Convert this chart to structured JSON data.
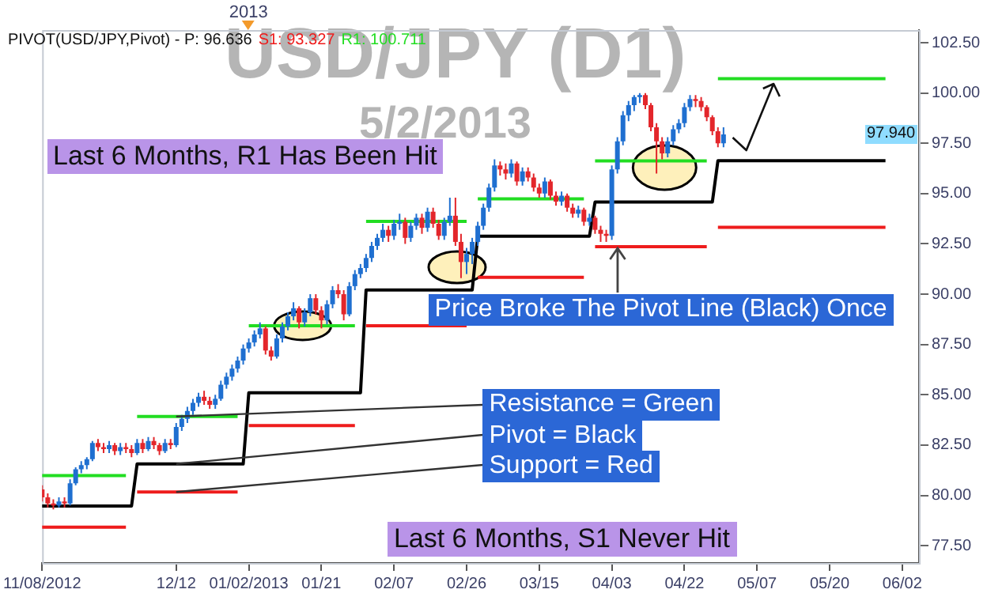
{
  "chart_data": {
    "type": "candlestick",
    "title": "USD/JPY (D1)",
    "subtitle": "5/2/2013",
    "categories": [
      "11/08/2012",
      null,
      null,
      null,
      null,
      null,
      null,
      null,
      null,
      null,
      null,
      null,
      null,
      null,
      null,
      null,
      null,
      null,
      null,
      null,
      null,
      null,
      null,
      null,
      "12/12",
      null,
      null,
      null,
      null,
      null,
      null,
      null,
      null,
      null,
      null,
      null,
      null,
      "01/02/2013",
      null,
      null,
      null,
      null,
      null,
      null,
      null,
      null,
      null,
      null,
      null,
      null,
      "01/21",
      null,
      null,
      null,
      null,
      null,
      null,
      null,
      null,
      null,
      null,
      null,
      null,
      "02/07",
      null,
      null,
      null,
      null,
      null,
      null,
      null,
      null,
      null,
      null,
      null,
      null,
      "02/26",
      null,
      null,
      null,
      null,
      null,
      null,
      null,
      null,
      null,
      null,
      null,
      null,
      "03/15",
      null,
      null,
      null,
      null,
      null,
      null,
      null,
      null,
      null,
      null,
      null,
      null,
      "04/03",
      null,
      null,
      null,
      null,
      null,
      null,
      null,
      null,
      null,
      null,
      null,
      null,
      "04/22",
      null,
      null,
      null,
      null,
      null,
      null,
      null,
      null,
      null,
      null,
      null,
      null,
      "05/07",
      null,
      null,
      null,
      null,
      null,
      null,
      null,
      null,
      null,
      null,
      null,
      null,
      "05/20",
      null,
      null,
      null,
      null,
      null,
      null,
      null,
      null,
      null,
      null,
      null,
      null,
      "06/02",
      null,
      null,
      null
    ],
    "ohlc": [
      [
        80.3,
        80.5,
        79.7,
        79.9
      ],
      [
        79.9,
        80.1,
        79.4,
        79.6
      ],
      [
        79.6,
        79.8,
        79.3,
        79.5
      ],
      [
        79.5,
        79.9,
        79.4,
        79.7
      ],
      [
        79.7,
        79.9,
        79.4,
        79.6
      ],
      [
        79.6,
        80.8,
        79.5,
        80.6
      ],
      [
        80.6,
        81.4,
        80.5,
        81.3
      ],
      [
        81.3,
        81.7,
        81.1,
        81.5
      ],
      [
        81.5,
        81.9,
        81.3,
        81.8
      ],
      [
        81.8,
        82.7,
        81.7,
        82.6
      ],
      [
        82.6,
        82.8,
        82.2,
        82.4
      ],
      [
        82.4,
        82.6,
        82.1,
        82.3
      ],
      [
        82.3,
        82.7,
        82.1,
        82.5
      ],
      [
        82.5,
        82.6,
        82.0,
        82.2
      ],
      [
        82.2,
        82.6,
        82.0,
        82.4
      ],
      [
        82.4,
        82.6,
        82.1,
        82.3
      ],
      [
        82.3,
        82.5,
        81.9,
        82.1
      ],
      [
        82.1,
        82.8,
        82.0,
        82.6
      ],
      [
        82.6,
        82.8,
        82.1,
        82.3
      ],
      [
        82.3,
        82.9,
        82.2,
        82.7
      ],
      [
        82.7,
        82.9,
        82.3,
        82.5
      ],
      [
        82.5,
        82.6,
        82.0,
        82.2
      ],
      [
        82.2,
        82.8,
        82.1,
        82.6
      ],
      [
        82.6,
        82.8,
        82.3,
        82.5
      ],
      [
        82.5,
        83.6,
        82.4,
        83.4
      ],
      [
        83.4,
        84.0,
        83.2,
        83.8
      ],
      [
        83.8,
        84.4,
        83.6,
        84.2
      ],
      [
        84.2,
        84.8,
        84.0,
        84.6
      ],
      [
        84.6,
        85.1,
        84.4,
        84.9
      ],
      [
        84.9,
        85.2,
        84.5,
        84.7
      ],
      [
        84.7,
        84.9,
        84.3,
        84.5
      ],
      [
        84.5,
        85.0,
        84.3,
        84.8
      ],
      [
        84.8,
        85.7,
        84.7,
        85.5
      ],
      [
        85.5,
        86.1,
        85.3,
        85.9
      ],
      [
        85.9,
        86.5,
        85.7,
        86.3
      ],
      [
        86.3,
        86.9,
        86.1,
        86.7
      ],
      [
        86.7,
        87.5,
        86.5,
        87.3
      ],
      [
        87.3,
        87.8,
        87.1,
        87.6
      ],
      [
        87.6,
        88.2,
        87.4,
        88.0
      ],
      [
        88.0,
        88.6,
        87.8,
        88.3
      ],
      [
        88.3,
        88.4,
        87.0,
        87.2
      ],
      [
        87.2,
        87.4,
        86.7,
        86.9
      ],
      [
        86.9,
        88.0,
        86.8,
        87.8
      ],
      [
        87.8,
        88.6,
        87.6,
        88.4
      ],
      [
        88.4,
        89.1,
        88.2,
        88.9
      ],
      [
        88.9,
        89.6,
        88.7,
        89.3
      ],
      [
        89.3,
        89.4,
        88.3,
        88.6
      ],
      [
        88.6,
        89.3,
        88.4,
        89.1
      ],
      [
        89.1,
        90.0,
        88.9,
        89.8
      ],
      [
        89.8,
        90.0,
        89.0,
        89.2
      ],
      [
        89.2,
        89.4,
        88.3,
        88.7
      ],
      [
        88.7,
        89.7,
        88.5,
        89.5
      ],
      [
        89.5,
        90.4,
        89.3,
        90.2
      ],
      [
        90.2,
        90.5,
        89.8,
        90.0
      ],
      [
        90.0,
        90.2,
        88.7,
        89.0
      ],
      [
        89.0,
        90.6,
        88.9,
        90.4
      ],
      [
        90.4,
        91.2,
        90.2,
        91.0
      ],
      [
        91.0,
        91.5,
        90.8,
        91.3
      ],
      [
        91.3,
        92.0,
        91.1,
        91.8
      ],
      [
        91.8,
        92.6,
        91.6,
        92.4
      ],
      [
        92.4,
        93.0,
        92.2,
        92.8
      ],
      [
        92.8,
        93.5,
        92.6,
        93.2
      ],
      [
        93.2,
        93.4,
        92.6,
        92.9
      ],
      [
        92.9,
        93.7,
        92.7,
        93.5
      ],
      [
        93.5,
        94.0,
        93.2,
        93.6
      ],
      [
        93.6,
        93.8,
        92.5,
        92.8
      ],
      [
        92.8,
        93.6,
        92.6,
        93.4
      ],
      [
        93.4,
        94.0,
        93.2,
        93.8
      ],
      [
        93.8,
        94.0,
        93.0,
        93.3
      ],
      [
        93.3,
        94.3,
        93.1,
        94.1
      ],
      [
        94.1,
        94.3,
        93.3,
        93.5
      ],
      [
        93.5,
        93.7,
        92.7,
        92.9
      ],
      [
        92.9,
        93.8,
        92.7,
        93.6
      ],
      [
        93.6,
        94.8,
        93.4,
        93.9
      ],
      [
        93.9,
        94.8,
        92.4,
        92.6
      ],
      [
        92.6,
        93.0,
        90.8,
        91.6
      ],
      [
        91.6,
        92.3,
        91.0,
        92.0
      ],
      [
        92.0,
        92.8,
        91.5,
        92.6
      ],
      [
        92.6,
        93.6,
        92.4,
        93.4
      ],
      [
        93.4,
        94.5,
        93.2,
        94.3
      ],
      [
        94.3,
        95.5,
        94.1,
        95.3
      ],
      [
        95.3,
        96.7,
        95.1,
        96.4
      ],
      [
        96.4,
        96.6,
        95.9,
        96.2
      ],
      [
        96.2,
        96.5,
        95.7,
        96.0
      ],
      [
        96.0,
        96.7,
        95.8,
        96.5
      ],
      [
        96.5,
        96.6,
        95.4,
        95.6
      ],
      [
        95.6,
        96.3,
        95.4,
        96.1
      ],
      [
        96.1,
        96.3,
        95.6,
        95.8
      ],
      [
        95.8,
        96.0,
        95.1,
        95.3
      ],
      [
        95.3,
        95.5,
        94.8,
        95.0
      ],
      [
        95.0,
        95.8,
        94.8,
        95.6
      ],
      [
        95.6,
        95.7,
        94.7,
        94.9
      ],
      [
        94.9,
        95.1,
        94.4,
        94.6
      ],
      [
        94.6,
        95.1,
        94.4,
        94.9
      ],
      [
        94.9,
        95.0,
        94.1,
        94.3
      ],
      [
        94.3,
        94.5,
        93.8,
        94.0
      ],
      [
        94.0,
        94.4,
        93.8,
        94.2
      ],
      [
        94.2,
        94.3,
        93.4,
        93.6
      ],
      [
        93.6,
        94.0,
        93.4,
        93.8
      ],
      [
        93.8,
        93.9,
        93.0,
        93.2
      ],
      [
        93.2,
        93.4,
        92.6,
        93.0
      ],
      [
        93.0,
        93.2,
        92.6,
        92.9
      ],
      [
        92.9,
        96.4,
        92.7,
        96.2
      ],
      [
        96.2,
        97.8,
        96.0,
        97.6
      ],
      [
        97.6,
        99.1,
        97.4,
        98.9
      ],
      [
        98.9,
        99.6,
        98.6,
        99.4
      ],
      [
        99.4,
        99.9,
        99.1,
        99.8
      ],
      [
        99.8,
        100.0,
        99.5,
        99.9
      ],
      [
        99.9,
        100.0,
        99.2,
        99.4
      ],
      [
        99.4,
        99.5,
        98.1,
        98.3
      ],
      [
        98.3,
        98.5,
        96.0,
        97.6
      ],
      [
        97.6,
        97.8,
        96.7,
        97.0
      ],
      [
        97.0,
        97.8,
        96.8,
        97.6
      ],
      [
        97.6,
        98.4,
        97.4,
        98.2
      ],
      [
        98.2,
        98.7,
        98.0,
        98.5
      ],
      [
        98.5,
        99.5,
        98.3,
        99.3
      ],
      [
        99.3,
        99.9,
        99.1,
        99.7
      ],
      [
        99.7,
        99.9,
        99.3,
        99.6
      ],
      [
        99.6,
        99.8,
        99.1,
        99.3
      ],
      [
        99.3,
        99.4,
        98.6,
        98.8
      ],
      [
        98.8,
        98.9,
        97.9,
        98.1
      ],
      [
        98.1,
        98.3,
        97.3,
        97.5
      ],
      [
        97.5,
        98.3,
        97.3,
        97.94
      ],
      null,
      null,
      null,
      null,
      null,
      null,
      null,
      null,
      null,
      null,
      null,
      null,
      null,
      null,
      null,
      null,
      null,
      null,
      null,
      null,
      null,
      null,
      null,
      null,
      null,
      null,
      null,
      null,
      null,
      null,
      null,
      null,
      null,
      null,
      null
    ],
    "colors": [
      "#e3262b",
      "#e3262b",
      "#e3262b",
      "#1f6fd0",
      "#e3262b",
      "#1f6fd0",
      "#1f6fd0",
      "#1f6fd0",
      "#1f6fd0",
      "#1f6fd0",
      "#e3262b",
      "#e3262b",
      "#1f6fd0",
      "#e3262b",
      "#1f6fd0",
      "#e3262b",
      "#e3262b",
      "#1f6fd0",
      "#e3262b",
      "#1f6fd0",
      "#e3262b",
      "#e3262b",
      "#1f6fd0",
      "#e3262b",
      "#1f6fd0",
      "#1f6fd0",
      "#1f6fd0",
      "#1f6fd0",
      "#1f6fd0",
      "#e3262b",
      "#e3262b",
      "#1f6fd0",
      "#1f6fd0",
      "#1f6fd0",
      "#1f6fd0",
      "#1f6fd0",
      "#1f6fd0",
      "#1f6fd0",
      "#1f6fd0",
      "#1f6fd0",
      "#e3262b",
      "#e3262b",
      "#1f6fd0",
      "#1f6fd0",
      "#1f6fd0",
      "#1f6fd0",
      "#e3262b",
      "#1f6fd0",
      "#1f6fd0",
      "#e3262b",
      "#e3262b",
      "#1f6fd0",
      "#1f6fd0",
      "#e3262b",
      "#e3262b",
      "#1f6fd0",
      "#1f6fd0",
      "#1f6fd0",
      "#1f6fd0",
      "#1f6fd0",
      "#1f6fd0",
      "#1f6fd0",
      "#e3262b",
      "#1f6fd0",
      "#1f6fd0",
      "#e3262b",
      "#1f6fd0",
      "#1f6fd0",
      "#e3262b",
      "#1f6fd0",
      "#e3262b",
      "#e3262b",
      "#1f6fd0",
      "#1f6fd0",
      "#e3262b",
      "#e3262b",
      "#1f6fd0",
      "#1f6fd0",
      "#1f6fd0",
      "#1f6fd0",
      "#1f6fd0",
      "#1f6fd0",
      "#e3262b",
      "#e3262b",
      "#1f6fd0",
      "#e3262b",
      "#1f6fd0",
      "#e3262b",
      "#e3262b",
      "#e3262b",
      "#1f6fd0",
      "#e3262b",
      "#e3262b",
      "#1f6fd0",
      "#e3262b",
      "#e3262b",
      "#1f6fd0",
      "#e3262b",
      "#1f6fd0",
      "#e3262b",
      "#e3262b",
      "#e3262b",
      "#1f6fd0",
      "#1f6fd0",
      "#1f6fd0",
      "#1f6fd0",
      "#1f6fd0",
      "#1f6fd0",
      "#e3262b",
      "#e3262b",
      "#e3262b",
      "#e3262b",
      "#1f6fd0",
      "#1f6fd0",
      "#1f6fd0",
      "#1f6fd0",
      "#1f6fd0",
      "#e3262b",
      "#e3262b",
      "#e3262b",
      "#e3262b",
      "#e3262b",
      "#1f6fd0",
      null,
      null,
      null,
      null,
      null,
      null,
      null,
      null,
      null,
      null,
      null,
      null,
      null,
      null,
      null,
      null,
      null,
      null,
      null,
      null,
      null,
      null,
      null,
      null,
      null,
      null,
      null,
      null,
      null,
      null,
      null,
      null,
      null,
      null,
      null
    ],
    "series": [
      {
        "type": "line",
        "color": "#000000",
        "values": [
          79.47,
          79.47,
          79.47,
          79.47,
          79.47,
          79.47,
          79.47,
          79.47,
          79.47,
          79.47,
          79.47,
          79.47,
          79.47,
          79.47,
          79.47,
          79.47,
          79.47,
          81.56,
          81.56,
          81.56,
          81.56,
          81.56,
          81.56,
          81.56,
          81.56,
          81.56,
          81.56,
          81.56,
          81.56,
          81.56,
          81.56,
          81.56,
          81.56,
          81.56,
          81.56,
          81.56,
          81.56,
          85.1,
          85.1,
          85.1,
          85.1,
          85.1,
          85.1,
          85.1,
          85.1,
          85.1,
          85.1,
          85.1,
          85.1,
          85.1,
          85.1,
          85.1,
          85.1,
          85.1,
          85.1,
          85.1,
          85.1,
          85.1,
          90.21,
          90.21,
          90.21,
          90.21,
          90.21,
          90.21,
          90.21,
          90.21,
          90.21,
          90.21,
          90.21,
          90.21,
          90.21,
          90.21,
          90.21,
          90.21,
          90.21,
          90.21,
          90.21,
          90.21,
          92.88,
          92.88,
          92.88,
          92.88,
          92.88,
          92.88,
          92.88,
          92.88,
          92.88,
          92.88,
          92.88,
          92.88,
          92.88,
          92.88,
          92.88,
          92.88,
          92.88,
          92.88,
          92.88,
          92.88,
          92.88,
          94.58,
          94.58,
          94.58,
          94.58,
          94.58,
          94.58,
          94.58,
          94.58,
          94.58,
          94.58,
          94.58,
          94.58,
          94.58,
          94.58,
          94.58,
          94.58,
          94.58,
          94.58,
          94.58,
          94.58,
          94.58,
          94.58,
          96.636,
          96.636,
          96.636,
          96.636,
          96.636,
          96.636,
          96.636,
          96.636,
          96.636,
          96.636,
          96.636,
          96.636,
          96.636,
          96.636,
          96.636,
          96.636,
          96.636,
          96.636,
          96.636,
          96.636,
          96.636,
          96.636,
          96.636,
          96.636,
          96.636,
          96.636,
          96.636,
          96.636,
          96.636,
          96.636,
          96.636,
          null,
          null,
          null,
          null,
          null,
          null
        ]
      },
      {
        "type": "line",
        "color": "#22dd22",
        "values": [
          80.98,
          80.98,
          80.98,
          80.98,
          80.98,
          80.98,
          80.98,
          80.98,
          80.98,
          80.98,
          80.98,
          80.98,
          80.98,
          80.98,
          80.98,
          80.98,
          null,
          83.92,
          83.92,
          83.92,
          83.92,
          83.92,
          83.92,
          83.92,
          83.92,
          83.92,
          83.92,
          83.92,
          83.92,
          83.92,
          83.92,
          83.92,
          83.92,
          83.92,
          83.92,
          83.92,
          null,
          88.43,
          88.43,
          88.43,
          88.43,
          88.43,
          88.43,
          88.43,
          88.43,
          88.43,
          88.43,
          88.43,
          88.43,
          88.43,
          88.43,
          88.43,
          88.43,
          88.43,
          88.43,
          88.43,
          88.43,
          null,
          93.62,
          93.62,
          93.62,
          93.62,
          93.62,
          93.62,
          93.62,
          93.62,
          93.62,
          93.62,
          93.62,
          93.62,
          93.62,
          93.62,
          93.62,
          93.62,
          93.62,
          93.62,
          93.62,
          null,
          94.74,
          94.74,
          94.74,
          94.74,
          94.74,
          94.74,
          94.74,
          94.74,
          94.74,
          94.74,
          94.74,
          94.74,
          94.74,
          94.74,
          94.74,
          94.74,
          94.74,
          94.74,
          94.74,
          94.74,
          null,
          96.63,
          96.63,
          96.63,
          96.63,
          96.63,
          96.63,
          96.63,
          96.63,
          96.63,
          96.63,
          96.63,
          96.63,
          96.63,
          96.63,
          96.63,
          96.63,
          96.63,
          96.63,
          96.63,
          96.63,
          96.63,
          null,
          100.711,
          100.711,
          100.711,
          100.711,
          100.711,
          100.711,
          100.711,
          100.711,
          100.711,
          100.711,
          100.711,
          100.711,
          100.711,
          100.711,
          100.711,
          100.711,
          100.711,
          100.711,
          100.711,
          100.711,
          100.711,
          100.711,
          100.711,
          100.711,
          100.711,
          100.711,
          100.711,
          100.711,
          100.711,
          100.711,
          100.711,
          null,
          null,
          null,
          null,
          null,
          null
        ]
      },
      {
        "type": "line",
        "color": "#ee1c1c",
        "values": [
          78.42,
          78.42,
          78.42,
          78.42,
          78.42,
          78.42,
          78.42,
          78.42,
          78.42,
          78.42,
          78.42,
          78.42,
          78.42,
          78.42,
          78.42,
          78.42,
          null,
          80.17,
          80.17,
          80.17,
          80.17,
          80.17,
          80.17,
          80.17,
          80.17,
          80.17,
          80.17,
          80.17,
          80.17,
          80.17,
          80.17,
          80.17,
          80.17,
          80.17,
          80.17,
          80.17,
          null,
          83.47,
          83.47,
          83.47,
          83.47,
          83.47,
          83.47,
          83.47,
          83.47,
          83.47,
          83.47,
          83.47,
          83.47,
          83.47,
          83.47,
          83.47,
          83.47,
          83.47,
          83.47,
          83.47,
          83.47,
          null,
          88.43,
          88.43,
          88.43,
          88.43,
          88.43,
          88.43,
          88.43,
          88.43,
          88.43,
          88.43,
          88.43,
          88.43,
          88.43,
          88.43,
          88.43,
          88.43,
          88.43,
          88.43,
          88.43,
          null,
          90.84,
          90.84,
          90.84,
          90.84,
          90.84,
          90.84,
          90.84,
          90.84,
          90.84,
          90.84,
          90.84,
          90.84,
          90.84,
          90.84,
          90.84,
          90.84,
          90.84,
          90.84,
          90.84,
          90.84,
          null,
          92.36,
          92.36,
          92.36,
          92.36,
          92.36,
          92.36,
          92.36,
          92.36,
          92.36,
          92.36,
          92.36,
          92.36,
          92.36,
          92.36,
          92.36,
          92.36,
          92.36,
          92.36,
          92.36,
          92.36,
          92.36,
          null,
          93.327,
          93.327,
          93.327,
          93.327,
          93.327,
          93.327,
          93.327,
          93.327,
          93.327,
          93.327,
          93.327,
          93.327,
          93.327,
          93.327,
          93.327,
          93.327,
          93.327,
          93.327,
          93.327,
          93.327,
          93.327,
          93.327,
          93.327,
          93.327,
          93.327,
          93.327,
          93.327,
          93.327,
          93.327,
          93.327,
          93.327,
          null,
          null,
          null,
          null,
          null,
          null
        ]
      }
    ],
    "ylim": [
      76.64,
      103.13
    ],
    "yticks": [
      {
        "value": 77.5,
        "label": "77.50"
      },
      {
        "value": 80,
        "label": "80.00"
      },
      {
        "value": 82.5,
        "label": "82.50"
      },
      {
        "value": 85,
        "label": "85.00"
      },
      {
        "value": 87.5,
        "label": "87.50"
      },
      {
        "value": 90,
        "label": "90.00"
      },
      {
        "value": 92.5,
        "label": "92.50"
      },
      {
        "value": 95,
        "label": "95.00"
      },
      {
        "value": 97.5,
        "label": "97.50"
      },
      {
        "value": 100,
        "label": "100.00"
      },
      {
        "value": 102.5,
        "label": "102.50"
      }
    ],
    "annotations": [
      "PIVOT(USD/JPY,Pivot) -  P: 96.636",
      "S1: 93.327",
      "R1: 100.711",
      "2013",
      "Last 6 Months, R1 Has Been Hit",
      "Price Broke The Pivot Line (Black) Once",
      {
        "text": "Resistance = Green",
        "x": "12/12",
        "y": 83.92
      },
      {
        "text": "Pivot = Black",
        "x": "12/12",
        "y": 81.56
      },
      {
        "text": "Support = Red",
        "x": "12/12",
        "y": 80.17
      },
      "Last 6 Months, S1 Never Hit",
      {
        "text": "97.940",
        "y": 97.94
      }
    ],
    "grid": false,
    "legend": false,
    "marker": "none",
    "line_style": "solid"
  }
}
